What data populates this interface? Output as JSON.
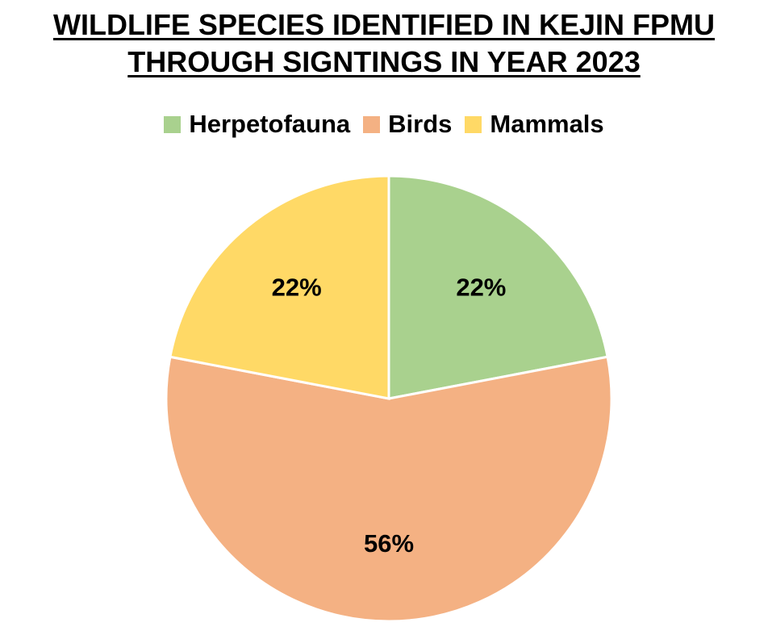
{
  "title_line1": "WILDLIFE SPECIES IDENTIFIED IN KEJIN FPMU",
  "title_line2": "THROUGH SIGNTINGS IN YEAR 2023",
  "chart_data": {
    "type": "pie",
    "title": "WILDLIFE SPECIES IDENTIFIED IN KEJIN FPMU THROUGH SIGNTINGS IN YEAR 2023",
    "legend_position": "top",
    "slices": [
      {
        "label": "Herpetofauna",
        "value": 22,
        "display": "22%",
        "color": "#a9d18e"
      },
      {
        "label": "Birds",
        "value": 56,
        "display": "56%",
        "color": "#f4b183"
      },
      {
        "label": "Mammals",
        "value": 22,
        "display": "22%",
        "color": "#ffd966"
      }
    ]
  }
}
